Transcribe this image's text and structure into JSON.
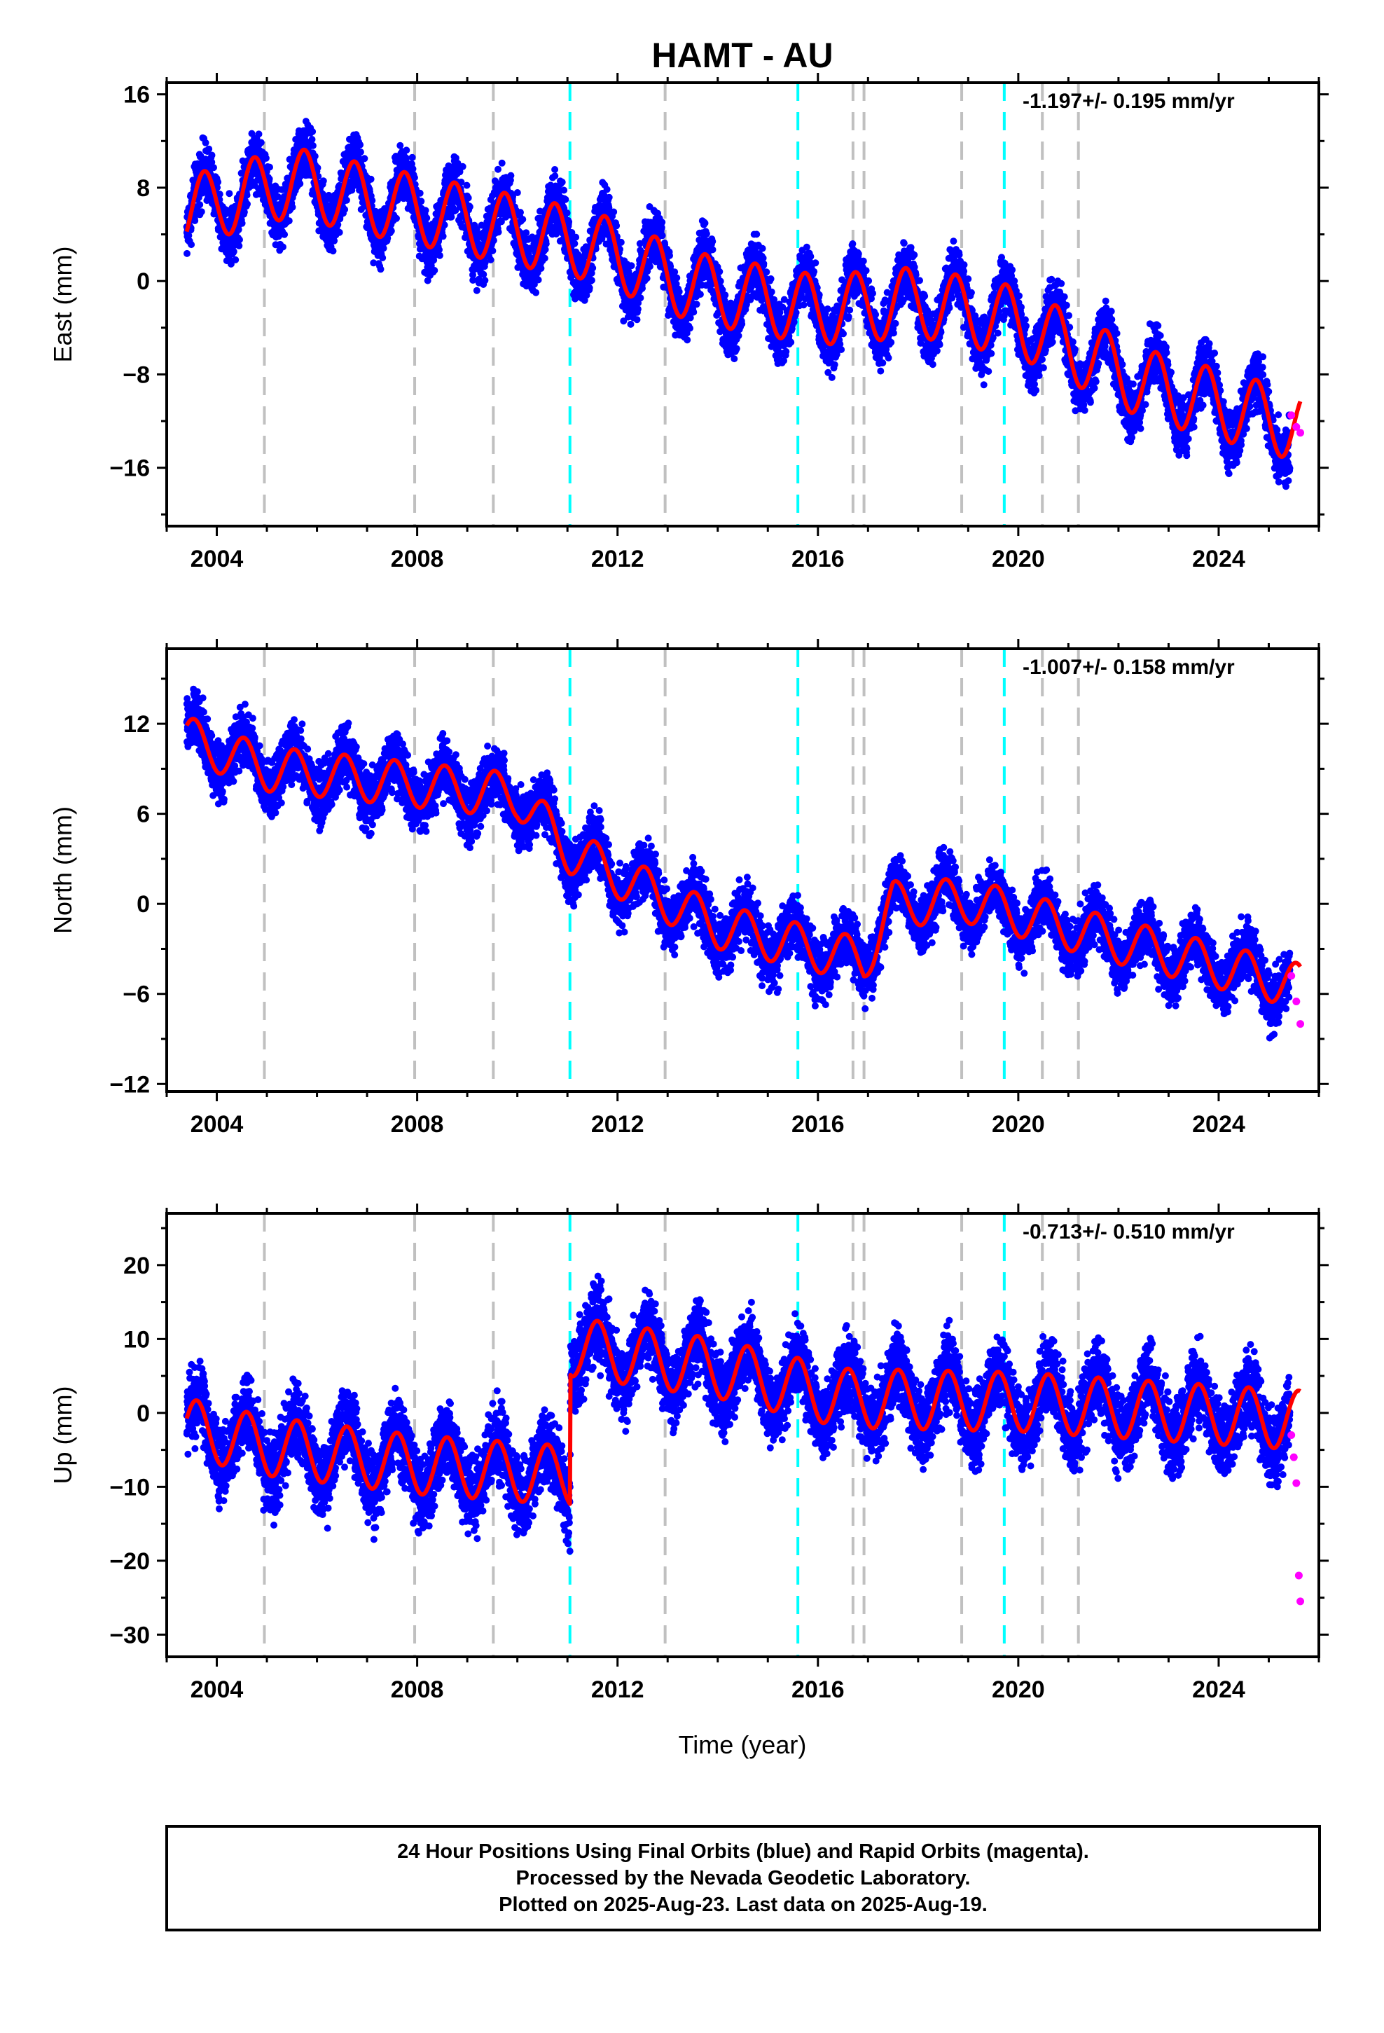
{
  "colors": {
    "final_orbits": "#0000ff",
    "rapid_orbits": "#ff00ff",
    "model_fit": "#ff0000",
    "offset_other": "#c0c0c0",
    "offset_equipment": "#00ffff",
    "axis": "#000000"
  },
  "chart_data": {
    "type": "scatter",
    "title": "HAMT - AU",
    "xlabel": "Time (year)",
    "xlim": [
      2003.0,
      2026.0
    ],
    "xticks": [
      2004,
      2008,
      2012,
      2016,
      2020,
      2024
    ],
    "offsets_gray": [
      2004.95,
      2007.95,
      2009.52,
      2012.95,
      2016.7,
      2016.92,
      2018.87,
      2020.48,
      2021.2
    ],
    "offsets_cyan": [
      2011.05,
      2015.6,
      2019.72
    ],
    "last_final_epoch": 2025.42,
    "last_rapid_epoch": 2025.63,
    "panels": [
      {
        "component": "East",
        "ylabel": "East (mm)",
        "ylim": [
          -21,
          17
        ],
        "yticks": [
          16,
          8,
          0,
          -8,
          -16
        ],
        "rate_text": "-1.197+/- 0.195 mm/yr",
        "series": [
          {
            "name": "Final Orbits",
            "x": [
              2003.5,
              2004.5,
              2005.5,
              2006.5,
              2007.5,
              2008.5,
              2009.5,
              2010.5,
              2011.5,
              2012.5,
              2013.5,
              2014.5,
              2015.5,
              2016.5,
              2017.5,
              2018.5,
              2019.5,
              2020.5,
              2021.5,
              2022.5,
              2023.5,
              2024.5,
              2025.4
            ],
            "y": [
              6,
              7,
              9,
              8,
              7,
              5,
              4,
              4,
              3,
              2,
              0,
              -2,
              -2,
              -2,
              -1,
              -1,
              -2,
              -4,
              -7,
              -8,
              -10,
              -11,
              -13
            ]
          },
          {
            "name": "Rapid Orbits",
            "x": [
              2025.45,
              2025.55,
              2025.63
            ],
            "y": [
              -11.5,
              -12.5,
              -13
            ]
          }
        ],
        "model": {
          "start": 2003.4,
          "end": 2025.63,
          "knots_x": [
            2003.4,
            2005.5,
            2007.0,
            2011.5,
            2013.5,
            2016.0,
            2018.0,
            2020.0,
            2022.5,
            2025.63
          ],
          "knots_y": [
            6.0,
            8.5,
            7.0,
            3.0,
            -0.5,
            -2.5,
            -1.8,
            -3.5,
            -8.8,
            -12.5
          ],
          "amplitude": 3.0,
          "phase": 0.5
        }
      },
      {
        "component": "North",
        "ylabel": "North (mm)",
        "ylim": [
          -12.5,
          17
        ],
        "yticks": [
          12,
          6,
          0,
          -6,
          -12
        ],
        "rate_text": "-1.007+/- 0.158 mm/yr",
        "series": [
          {
            "name": "Final Orbits",
            "x": [
              2003.5,
              2004.5,
              2005.5,
              2006.5,
              2007.5,
              2008.5,
              2009.5,
              2010.5,
              2011.5,
              2012.5,
              2013.5,
              2014.5,
              2015.5,
              2016.5,
              2017.5,
              2018.5,
              2019.5,
              2020.5,
              2021.5,
              2022.5,
              2023.5,
              2024.5,
              2025.4
            ],
            "y": [
              11,
              9.5,
              9,
              8.5,
              8,
              7.5,
              7,
              5,
              1.5,
              0.5,
              -1.5,
              -3,
              -3.5,
              -3.5,
              0,
              0,
              -1,
              -2.5,
              -2.5,
              -3,
              -4,
              -5,
              -6.5
            ]
          },
          {
            "name": "Rapid Orbits",
            "x": [
              2025.45,
              2025.55,
              2025.63
            ],
            "y": [
              -4.8,
              -6.5,
              -8
            ]
          }
        ],
        "model": {
          "start": 2003.4,
          "end": 2025.63,
          "knots_x": [
            2003.4,
            2005.0,
            2010.0,
            2011.05,
            2014.0,
            2016.92,
            2017.5,
            2019.0,
            2022.0,
            2025.63
          ],
          "knots_y": [
            11.0,
            9.0,
            7.2,
            3.5,
            -1.5,
            -3.8,
            0.0,
            0.2,
            -2.5,
            -5.5
          ],
          "amplitude": 1.5,
          "phase": 0.3
        }
      },
      {
        "component": "Up",
        "ylabel": "Up (mm)",
        "ylim": [
          -33,
          27
        ],
        "yticks": [
          20,
          10,
          0,
          -10,
          -20,
          -30
        ],
        "rate_text": "-0.713+/- 0.510 mm/yr",
        "series": [
          {
            "name": "Final Orbits",
            "x": [
              2003.5,
              2004.5,
              2005.5,
              2006.5,
              2007.5,
              2008.5,
              2009.5,
              2010.5,
              2011.5,
              2012.5,
              2013.5,
              2014.5,
              2015.5,
              2016.5,
              2017.5,
              2018.5,
              2019.5,
              2020.5,
              2021.5,
              2022.5,
              2023.5,
              2024.5,
              2025.4
            ],
            "y": [
              -3,
              -2,
              -5,
              -6,
              -7,
              -8,
              -9,
              -9,
              9,
              8,
              7,
              6,
              5,
              2,
              1,
              1,
              2,
              1,
              0,
              0,
              -1,
              -1,
              -3
            ]
          },
          {
            "name": "Rapid Orbits",
            "x": [
              2025.45,
              2025.5,
              2025.55,
              2025.6,
              2025.63
            ],
            "y": [
              -3,
              -6,
              -9.5,
              -22,
              -25.5
            ]
          }
        ],
        "model": {
          "start": 2003.4,
          "end": 2025.63,
          "knots_x": [
            2003.4,
            2005.0,
            2008.0,
            2011.05,
            2011.06,
            2014.0,
            2016.5,
            2020.0,
            2025.63
          ],
          "knots_y": [
            -2.0,
            -4.5,
            -7.0,
            -8.5,
            9.0,
            6.0,
            2.0,
            1.5,
            -1.0
          ],
          "amplitude": 4.0,
          "phase": 0.35
        }
      }
    ]
  },
  "footer": {
    "line1": "24 Hour Positions Using Final Orbits (blue) and Rapid Orbits (magenta).",
    "line2": "Processed by the Nevada Geodetic Laboratory.",
    "line3": "Plotted on 2025-Aug-23. Last data on 2025-Aug-19."
  }
}
